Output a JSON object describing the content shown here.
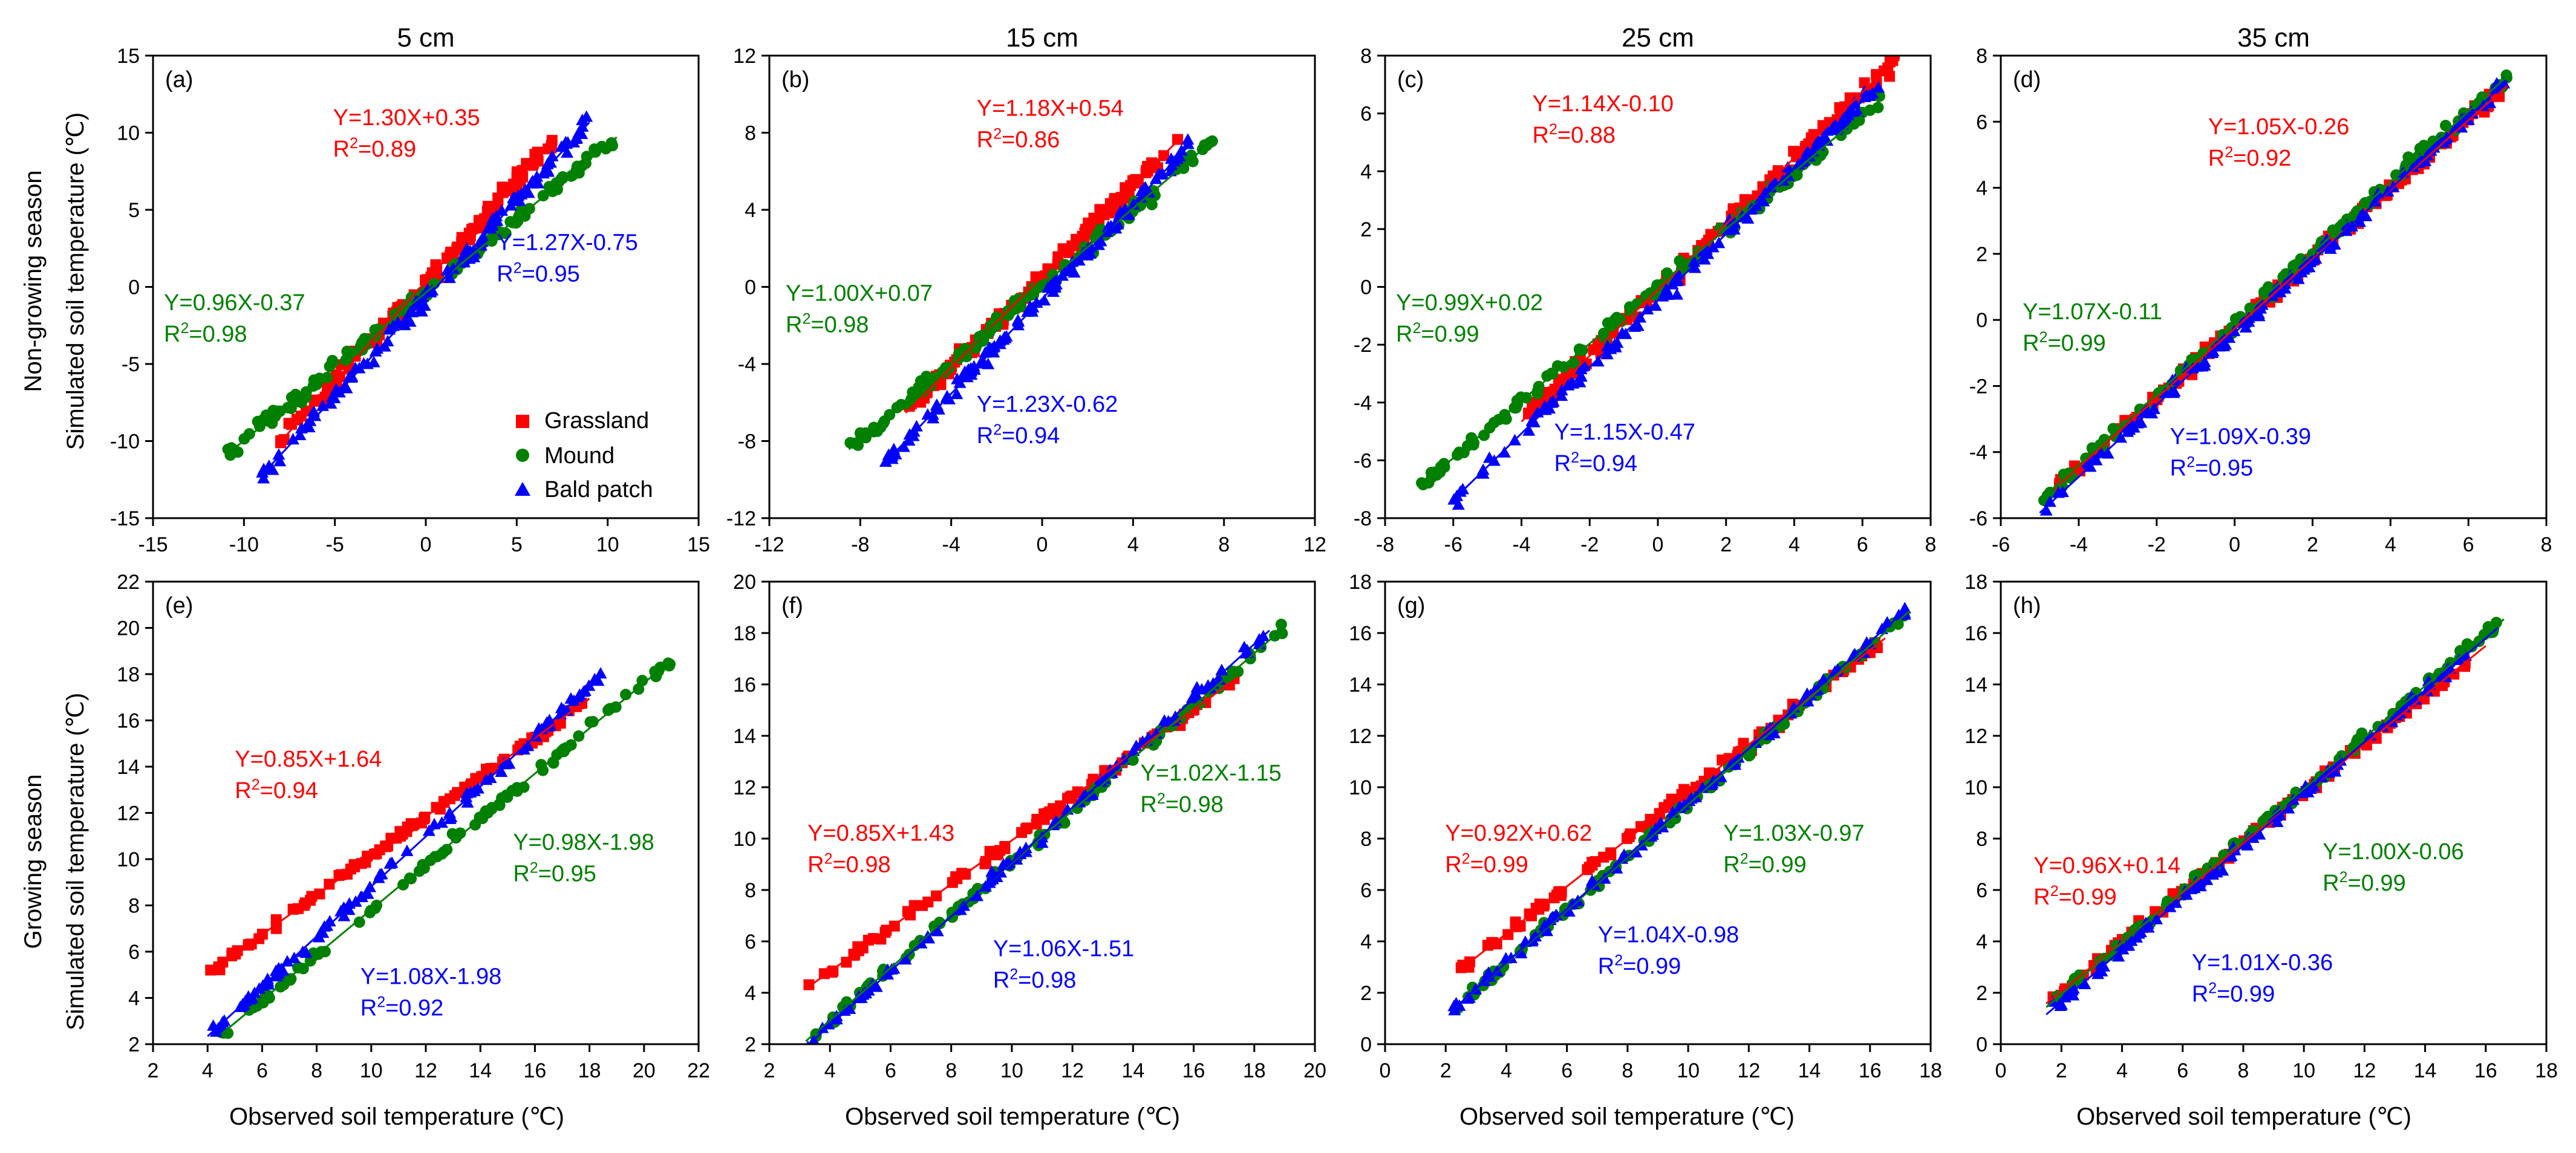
{
  "figure": {
    "row_labels": [
      {
        "season": "Non-growing season",
        "axis": "Simulated soil temperature (℃)"
      },
      {
        "season": "Growing season",
        "axis": "Simulated soil temperature (℃)"
      }
    ],
    "x_label": "Observed soil temperature (℃)",
    "depth_titles": [
      "5 cm",
      "15 cm",
      "25 cm",
      "35 cm"
    ],
    "legend": [
      {
        "name": "Grassland",
        "marker": "square",
        "color": "#ff0000"
      },
      {
        "name": "Mound",
        "marker": "circle",
        "color": "#008000"
      },
      {
        "name": "Bald patch",
        "marker": "triangle",
        "color": "#0000ff"
      }
    ]
  },
  "chart_data": [
    {
      "type": "scatter",
      "panel": "(a)",
      "title": "5 cm",
      "row": 0,
      "col": 0,
      "xlim": [
        -15,
        15
      ],
      "ylim": [
        -15,
        15
      ],
      "xticks": [
        -15,
        -10,
        -5,
        0,
        5,
        10,
        15
      ],
      "yticks": [
        -15,
        -10,
        -5,
        0,
        5,
        10,
        15
      ],
      "series": [
        {
          "name": "Grassland",
          "color": "#ff0000",
          "slope": 1.3,
          "intercept": 0.35,
          "x_range": [
            -8,
            7
          ],
          "equation": "Y=1.30X+0.35",
          "r2": "0.89"
        },
        {
          "name": "Mound",
          "color": "#008000",
          "slope": 0.96,
          "intercept": -0.37,
          "x_range": [
            -11,
            10.5
          ],
          "equation": "Y=0.96X-0.37",
          "r2": "0.98"
        },
        {
          "name": "Bald patch",
          "color": "#0000ff",
          "slope": 1.27,
          "intercept": -0.75,
          "x_range": [
            -9,
            9
          ],
          "equation": "Y=1.27X-0.75",
          "r2": "0.95"
        }
      ]
    },
    {
      "type": "scatter",
      "panel": "(b)",
      "title": "15 cm",
      "row": 0,
      "col": 1,
      "xlim": [
        -12,
        12
      ],
      "ylim": [
        -12,
        12
      ],
      "xticks": [
        -12,
        -8,
        -4,
        0,
        4,
        8,
        12
      ],
      "yticks": [
        -12,
        -8,
        -4,
        0,
        4,
        8,
        12
      ],
      "series": [
        {
          "name": "Grassland",
          "color": "#ff0000",
          "slope": 1.18,
          "intercept": 0.54,
          "x_range": [
            -6,
            6
          ],
          "equation": "Y=1.18X+0.54",
          "r2": "0.86"
        },
        {
          "name": "Mound",
          "color": "#008000",
          "slope": 1.0,
          "intercept": 0.07,
          "x_range": [
            -8.5,
            7.5
          ],
          "equation": "Y=1.00X+0.07",
          "r2": "0.98"
        },
        {
          "name": "Bald patch",
          "color": "#0000ff",
          "slope": 1.23,
          "intercept": -0.62,
          "x_range": [
            -7,
            6.5
          ],
          "equation": "Y=1.23X-0.62",
          "r2": "0.94"
        }
      ]
    },
    {
      "type": "scatter",
      "panel": "(c)",
      "title": "25 cm",
      "row": 0,
      "col": 2,
      "xlim": [
        -8,
        8
      ],
      "ylim": [
        -8,
        8
      ],
      "xticks": [
        -8,
        -6,
        -4,
        -2,
        0,
        2,
        4,
        6,
        8
      ],
      "yticks": [
        -8,
        -6,
        -4,
        -2,
        0,
        2,
        4,
        6,
        8
      ],
      "series": [
        {
          "name": "Grassland",
          "color": "#ff0000",
          "slope": 1.14,
          "intercept": -0.1,
          "x_range": [
            -4,
            7
          ],
          "equation": "Y=1.14X-0.10",
          "r2": "0.88"
        },
        {
          "name": "Mound",
          "color": "#008000",
          "slope": 0.99,
          "intercept": 0.02,
          "x_range": [
            -7,
            6.5
          ],
          "equation": "Y=0.99X+0.02",
          "r2": "0.99"
        },
        {
          "name": "Bald patch",
          "color": "#0000ff",
          "slope": 1.15,
          "intercept": -0.47,
          "x_range": [
            -6,
            6.5
          ],
          "equation": "Y=1.15X-0.47",
          "r2": "0.94"
        }
      ]
    },
    {
      "type": "scatter",
      "panel": "(d)",
      "title": "35 cm",
      "row": 0,
      "col": 3,
      "xlim": [
        -6,
        8
      ],
      "ylim": [
        -6,
        8
      ],
      "xticks": [
        -6,
        -4,
        -2,
        0,
        2,
        4,
        6,
        8
      ],
      "yticks": [
        -6,
        -4,
        -2,
        0,
        2,
        4,
        6,
        8
      ],
      "series": [
        {
          "name": "Grassland",
          "color": "#ff0000",
          "slope": 1.05,
          "intercept": -0.26,
          "x_range": [
            -4.5,
            7
          ],
          "equation": "Y=1.05X-0.26",
          "r2": "0.92"
        },
        {
          "name": "Mound",
          "color": "#008000",
          "slope": 1.07,
          "intercept": -0.11,
          "x_range": [
            -5,
            7
          ],
          "equation": "Y=1.07X-0.11",
          "r2": "0.99"
        },
        {
          "name": "Bald patch",
          "color": "#0000ff",
          "slope": 1.09,
          "intercept": -0.39,
          "x_range": [
            -5,
            7
          ],
          "equation": "Y=1.09X-0.39",
          "r2": "0.95"
        }
      ]
    },
    {
      "type": "scatter",
      "panel": "(e)",
      "title": "",
      "row": 1,
      "col": 0,
      "xlim": [
        2,
        22
      ],
      "ylim": [
        2,
        22
      ],
      "xticks": [
        2,
        4,
        6,
        8,
        10,
        12,
        14,
        16,
        18,
        20,
        22
      ],
      "yticks": [
        2,
        4,
        6,
        8,
        10,
        12,
        14,
        16,
        18,
        20,
        22
      ],
      "series": [
        {
          "name": "Grassland",
          "color": "#ff0000",
          "slope": 0.85,
          "intercept": 1.64,
          "x_range": [
            4,
            18
          ],
          "equation": "Y=0.85X+1.64",
          "r2": "0.94"
        },
        {
          "name": "Mound",
          "color": "#008000",
          "slope": 0.98,
          "intercept": -1.98,
          "x_range": [
            4.5,
            21
          ],
          "equation": "Y=0.98X-1.98",
          "r2": "0.95"
        },
        {
          "name": "Bald patch",
          "color": "#0000ff",
          "slope": 1.08,
          "intercept": -1.98,
          "x_range": [
            4,
            18.5
          ],
          "equation": "Y=1.08X-1.98",
          "r2": "0.92"
        }
      ]
    },
    {
      "type": "scatter",
      "panel": "(f)",
      "title": "",
      "row": 1,
      "col": 1,
      "xlim": [
        2,
        20
      ],
      "ylim": [
        2,
        20
      ],
      "xticks": [
        2,
        4,
        6,
        8,
        10,
        12,
        14,
        16,
        18,
        20
      ],
      "yticks": [
        2,
        4,
        6,
        8,
        10,
        12,
        14,
        16,
        18,
        20
      ],
      "series": [
        {
          "name": "Grassland",
          "color": "#ff0000",
          "slope": 0.85,
          "intercept": 1.43,
          "x_range": [
            3.2,
            17.5
          ],
          "equation": "Y=0.85X+1.43",
          "r2": "0.98"
        },
        {
          "name": "Mound",
          "color": "#008000",
          "slope": 1.02,
          "intercept": -1.15,
          "x_range": [
            3.2,
            19
          ],
          "equation": "Y=1.02X-1.15",
          "r2": "0.98"
        },
        {
          "name": "Bald patch",
          "color": "#0000ff",
          "slope": 1.06,
          "intercept": -1.51,
          "x_range": [
            3.2,
            18.5
          ],
          "equation": "Y=1.06X-1.51",
          "r2": "0.98"
        }
      ]
    },
    {
      "type": "scatter",
      "panel": "(g)",
      "title": "",
      "row": 1,
      "col": 2,
      "xlim": [
        0,
        18
      ],
      "ylim": [
        0,
        18
      ],
      "xticks": [
        0,
        2,
        4,
        6,
        8,
        10,
        12,
        14,
        16,
        18
      ],
      "yticks": [
        0,
        2,
        4,
        6,
        8,
        10,
        12,
        14,
        16,
        18
      ],
      "series": [
        {
          "name": "Grassland",
          "color": "#ff0000",
          "slope": 0.92,
          "intercept": 0.62,
          "x_range": [
            2.5,
            16.5
          ],
          "equation": "Y=0.92X+0.62",
          "r2": "0.99"
        },
        {
          "name": "Mound",
          "color": "#008000",
          "slope": 1.03,
          "intercept": -0.97,
          "x_range": [
            2.3,
            17.3
          ],
          "equation": "Y=1.03X-0.97",
          "r2": "0.99"
        },
        {
          "name": "Bald patch",
          "color": "#0000ff",
          "slope": 1.04,
          "intercept": -0.98,
          "x_range": [
            2.2,
            17.2
          ],
          "equation": "Y=1.04X-0.98",
          "r2": "0.99"
        }
      ]
    },
    {
      "type": "scatter",
      "panel": "(h)",
      "title": "",
      "row": 1,
      "col": 3,
      "xlim": [
        0,
        18
      ],
      "ylim": [
        0,
        18
      ],
      "xticks": [
        0,
        2,
        4,
        6,
        8,
        10,
        12,
        14,
        16,
        18
      ],
      "yticks": [
        0,
        2,
        4,
        6,
        8,
        10,
        12,
        14,
        16,
        18
      ],
      "series": [
        {
          "name": "Grassland",
          "color": "#ff0000",
          "slope": 0.96,
          "intercept": 0.14,
          "x_range": [
            1.5,
            16
          ],
          "equation": "Y=0.96X+0.14",
          "r2": "0.99"
        },
        {
          "name": "Mound",
          "color": "#008000",
          "slope": 1.0,
          "intercept": -0.06,
          "x_range": [
            1.5,
            16.6
          ],
          "equation": "Y=1.00X-0.06",
          "r2": "0.99"
        },
        {
          "name": "Bald patch",
          "color": "#0000ff",
          "slope": 1.01,
          "intercept": -0.36,
          "x_range": [
            1.5,
            16.4
          ],
          "equation": "Y=1.01X-0.36",
          "r2": "0.99"
        }
      ]
    }
  ]
}
